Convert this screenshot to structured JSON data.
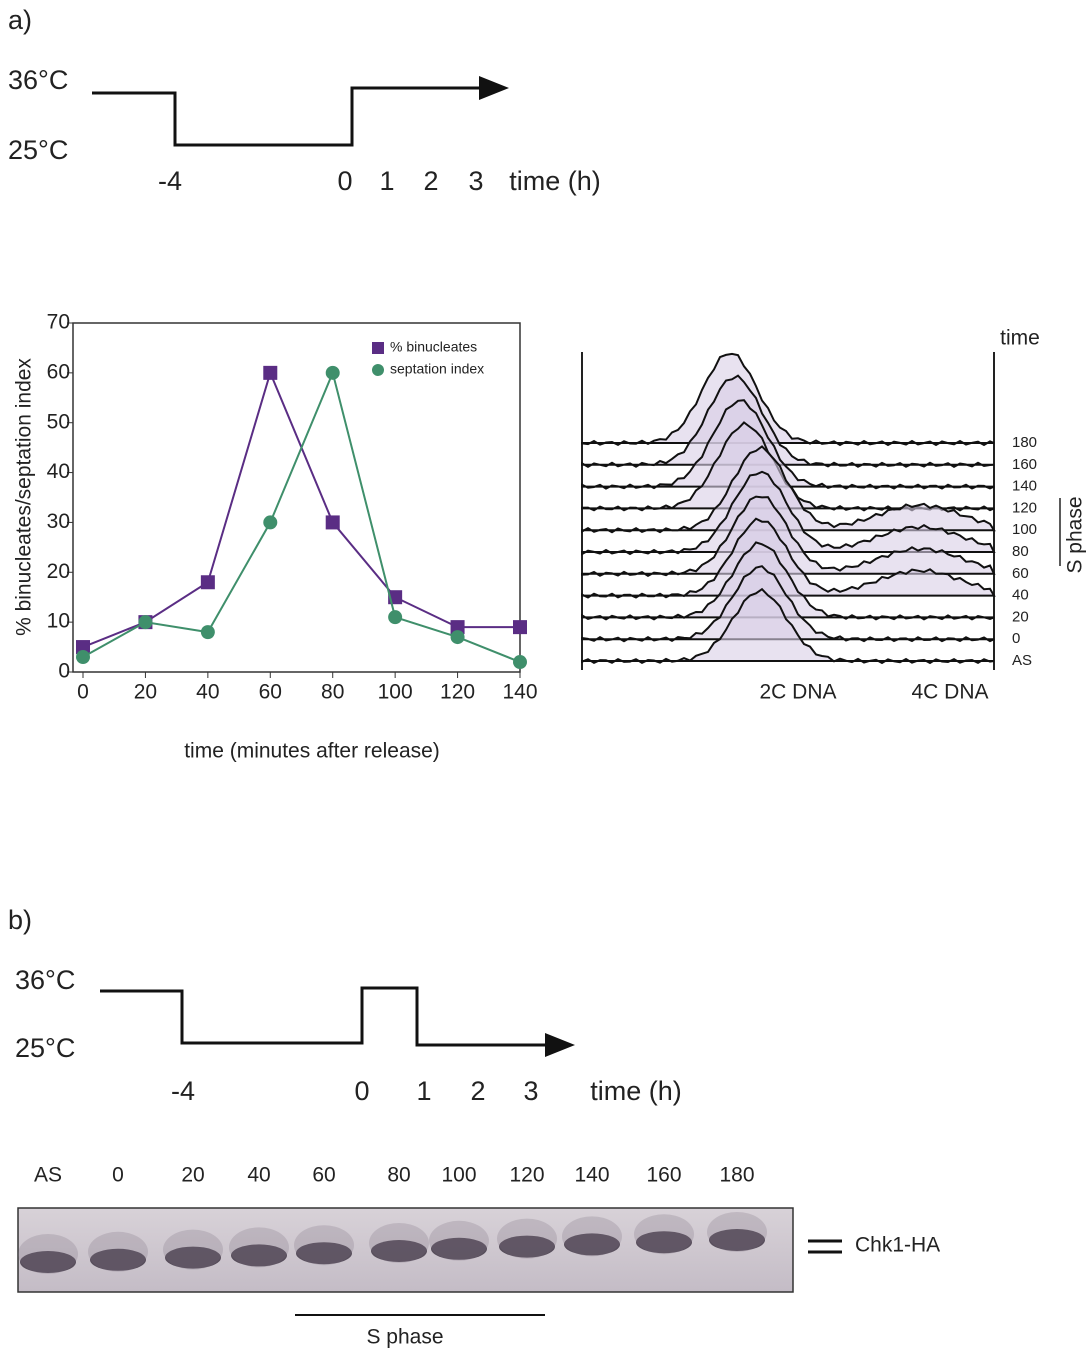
{
  "panel_a": {
    "label": "a)",
    "shift": {
      "high": "36°C",
      "low": "25°C",
      "ticks": [
        "-4",
        "0",
        "1",
        "2",
        "3"
      ],
      "axis_label": "time (h)"
    },
    "facs": {
      "title": "time",
      "times": [
        "180",
        "160",
        "140",
        "120",
        "100",
        "80",
        "60",
        "40",
        "20",
        "0",
        "AS"
      ],
      "s_phase": "S phase",
      "x_labels": [
        "2C DNA",
        "4C DNA"
      ]
    }
  },
  "chart_data": {
    "type": "line",
    "x_label": "time (minutes after release)",
    "y_label": "% binucleates/septation index",
    "x": [
      0,
      20,
      40,
      60,
      80,
      100,
      120,
      140
    ],
    "series": [
      {
        "name": "% binucleates",
        "color": "#5a2d84",
        "marker": "square",
        "values": [
          5,
          10,
          18,
          60,
          30,
          15,
          9,
          9
        ]
      },
      {
        "name": "septation index",
        "color": "#3f8f6b",
        "marker": "circle",
        "values": [
          3,
          10,
          8,
          30,
          60,
          11,
          7,
          2
        ]
      }
    ],
    "xlim": [
      0,
      140
    ],
    "xticks": [
      0,
      20,
      40,
      60,
      80,
      100,
      120,
      140
    ],
    "ylim": [
      0,
      70
    ],
    "yticks": [
      0,
      10,
      20,
      30,
      40,
      50,
      60,
      70
    ],
    "grid": false,
    "legend": "upper right"
  },
  "panel_b": {
    "label": "b)",
    "shift": {
      "high": "36°C",
      "low": "25°C",
      "ticks": [
        "-4",
        "0",
        "1",
        "2",
        "3"
      ],
      "axis_label": "time (h)"
    },
    "blot": {
      "lanes": [
        "AS",
        "0",
        "20",
        "40",
        "60",
        "80",
        "100",
        "120",
        "140",
        "160",
        "180"
      ],
      "band_label": "Chk1-HA",
      "s_phase": "S phase"
    }
  }
}
